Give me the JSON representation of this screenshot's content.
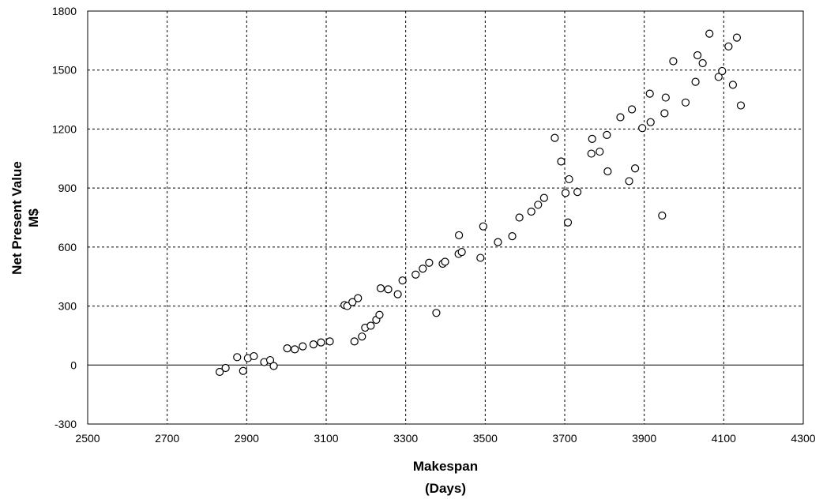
{
  "chart_data": {
    "type": "scatter",
    "title": "",
    "xlabel": [
      "Makespan",
      "(Days)"
    ],
    "ylabel": [
      "Net Present Value",
      "M$"
    ],
    "xlim": [
      2500,
      4300
    ],
    "ylim": [
      -300,
      1800
    ],
    "xticks": [
      2500,
      2700,
      2900,
      3100,
      3300,
      3500,
      3700,
      3900,
      4100,
      4300
    ],
    "yticks": [
      -300,
      0,
      300,
      600,
      900,
      1200,
      1500,
      1800
    ],
    "grid": true,
    "legend": "none",
    "marker": "open-circle",
    "colors": {
      "marker": "#000000",
      "grid": "#000000",
      "axis": "#000000"
    },
    "series": [
      {
        "points": [
          [
            2832,
            -35
          ],
          [
            2847,
            -15
          ],
          [
            2876,
            40
          ],
          [
            2891,
            -30
          ],
          [
            2903,
            35
          ],
          [
            2918,
            45
          ],
          [
            2944,
            15
          ],
          [
            2959,
            25
          ],
          [
            2968,
            -5
          ],
          [
            3002,
            85
          ],
          [
            3021,
            80
          ],
          [
            3041,
            95
          ],
          [
            3068,
            105
          ],
          [
            3087,
            115
          ],
          [
            3109,
            120
          ],
          [
            3146,
            305
          ],
          [
            3153,
            300
          ],
          [
            3166,
            320
          ],
          [
            3171,
            120
          ],
          [
            3180,
            340
          ],
          [
            3190,
            145
          ],
          [
            3198,
            190
          ],
          [
            3212,
            200
          ],
          [
            3226,
            230
          ],
          [
            3234,
            255
          ],
          [
            3237,
            390
          ],
          [
            3256,
            385
          ],
          [
            3280,
            360
          ],
          [
            3292,
            430
          ],
          [
            3325,
            460
          ],
          [
            3343,
            490
          ],
          [
            3359,
            520
          ],
          [
            3377,
            265
          ],
          [
            3393,
            515
          ],
          [
            3399,
            525
          ],
          [
            3433,
            565
          ],
          [
            3434,
            660
          ],
          [
            3441,
            575
          ],
          [
            3488,
            545
          ],
          [
            3495,
            705
          ],
          [
            3532,
            625
          ],
          [
            3568,
            655
          ],
          [
            3586,
            750
          ],
          [
            3616,
            780
          ],
          [
            3633,
            815
          ],
          [
            3648,
            850
          ],
          [
            3675,
            1155
          ],
          [
            3691,
            1035
          ],
          [
            3702,
            875
          ],
          [
            3708,
            725
          ],
          [
            3711,
            945
          ],
          [
            3732,
            880
          ],
          [
            3767,
            1075
          ],
          [
            3769,
            1150
          ],
          [
            3788,
            1085
          ],
          [
            3806,
            1170
          ],
          [
            3808,
            985
          ],
          [
            3840,
            1260
          ],
          [
            3862,
            935
          ],
          [
            3869,
            1300
          ],
          [
            3877,
            1000
          ],
          [
            3895,
            1205
          ],
          [
            3914,
            1380
          ],
          [
            3916,
            1235
          ],
          [
            3945,
            760
          ],
          [
            3951,
            1280
          ],
          [
            3954,
            1360
          ],
          [
            3973,
            1545
          ],
          [
            4004,
            1335
          ],
          [
            4029,
            1440
          ],
          [
            4034,
            1575
          ],
          [
            4047,
            1535
          ],
          [
            4064,
            1685
          ],
          [
            4087,
            1465
          ],
          [
            4096,
            1495
          ],
          [
            4112,
            1620
          ],
          [
            4123,
            1425
          ],
          [
            4133,
            1665
          ],
          [
            4143,
            1320
          ]
        ]
      }
    ]
  }
}
